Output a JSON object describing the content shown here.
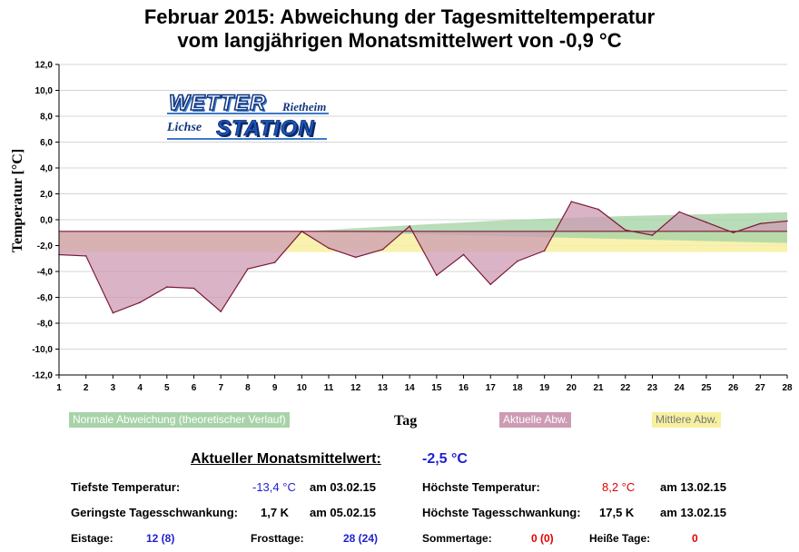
{
  "title": {
    "line1": "Februar 2015: Abweichung der Tagesmitteltemperatur",
    "line2": "vom langjährigen Monatsmittelwert von -0,9 °C"
  },
  "logo": {
    "word1": "WETTER",
    "word2": "Rietheim",
    "word3": "Lichse",
    "word4": "STATION"
  },
  "chart_data": {
    "type": "area",
    "title": "Februar 2015: Abweichung der Tagesmitteltemperatur vom langjährigen Monatsmittelwert von -0,9 °C",
    "xlabel": "Tag",
    "ylabel": "Temperatur [°C]",
    "x": [
      1,
      2,
      3,
      4,
      5,
      6,
      7,
      8,
      9,
      10,
      11,
      12,
      13,
      14,
      15,
      16,
      17,
      18,
      19,
      20,
      21,
      22,
      23,
      24,
      25,
      26,
      27,
      28
    ],
    "xlim": [
      1,
      28
    ],
    "ylim": [
      -12,
      12
    ],
    "y_ticks": [
      "12,0",
      "10,0",
      "8,0",
      "6,0",
      "4,0",
      "2,0",
      "0,0",
      "-2,0",
      "-4,0",
      "-6,0",
      "-8,0",
      "-10,0",
      "-12,0"
    ],
    "x_ticks": [
      "1",
      "2",
      "3",
      "4",
      "5",
      "6",
      "7",
      "8",
      "9",
      "10",
      "11",
      "12",
      "13",
      "14",
      "15",
      "16",
      "17",
      "18",
      "19",
      "20",
      "21",
      "22",
      "23",
      "24",
      "25",
      "26",
      "27",
      "28"
    ],
    "reference_level": -0.9,
    "series": [
      {
        "name": "Aktuelle Abw.",
        "color": "#cd9bb3",
        "line_color": "#7b1a34",
        "values": [
          -2.7,
          -2.8,
          -7.2,
          -6.4,
          -5.2,
          -5.3,
          -7.1,
          -3.8,
          -3.3,
          -0.9,
          -2.2,
          -2.9,
          -2.3,
          -0.5,
          -4.3,
          -2.7,
          -5.0,
          -3.2,
          -2.4,
          1.4,
          0.8,
          -0.8,
          -1.2,
          0.6,
          -0.2,
          -1.0,
          -0.3,
          -0.1
        ]
      },
      {
        "name": "Normale Abweichung (theoretischer Verlauf)",
        "color": "#a8d3a8",
        "upper": [
          -0.9,
          -0.9,
          -0.9,
          -0.9,
          -0.9,
          -0.9,
          -0.9,
          -0.9,
          -0.9,
          -0.9,
          -0.78,
          -0.66,
          -0.54,
          -0.43,
          -0.32,
          -0.21,
          -0.1,
          0.0,
          0.08,
          0.15,
          0.22,
          0.28,
          0.33,
          0.38,
          0.43,
          0.48,
          0.53,
          0.58
        ],
        "lower": [
          -0.9,
          -0.9,
          -0.9,
          -0.9,
          -0.9,
          -0.9,
          -0.9,
          -0.9,
          -0.9,
          -0.9,
          -0.95,
          -1.0,
          -1.05,
          -1.1,
          -1.15,
          -1.2,
          -1.25,
          -1.3,
          -1.35,
          -1.4,
          -1.45,
          -1.5,
          -1.55,
          -1.6,
          -1.65,
          -1.7,
          -1.75,
          -1.8
        ]
      },
      {
        "name": "Mittlere Abw.",
        "color": "#f7f0a0",
        "range": [
          -2.5,
          -0.9
        ]
      }
    ]
  },
  "legend": {
    "normal": "Normale Abweichung (theoretischer Verlauf)",
    "actual": "Aktuelle Abw.",
    "mean": "Mittlere Abw."
  },
  "stats": {
    "monthly_mean_label": "Aktueller Monatsmittelwert:",
    "monthly_mean_value": "-2,5 °C",
    "min_temp_label": "Tiefste Temperatur:",
    "min_temp_value": "-13,4 °C",
    "min_temp_date": "am 03.02.15",
    "max_temp_label": "Höchste Temperatur:",
    "max_temp_value": "8,2 °C",
    "max_temp_date": "am 13.02.15",
    "min_range_label": "Geringste Tagesschwankung:",
    "min_range_value": "1,7 K",
    "min_range_date": "am 05.02.15",
    "max_range_label": "Höchste Tagesschwankung:",
    "max_range_value": "17,5 K",
    "max_range_date": "am 13.02.15",
    "ice_days_label": "Eistage:",
    "ice_days_value": "12 (8)",
    "frost_days_label": "Frosttage:",
    "frost_days_value": "28 (24)",
    "summer_days_label": "Sommertage:",
    "summer_days_value": "0 (0)",
    "hot_days_label": "Heiße Tage:",
    "hot_days_value": "0"
  }
}
